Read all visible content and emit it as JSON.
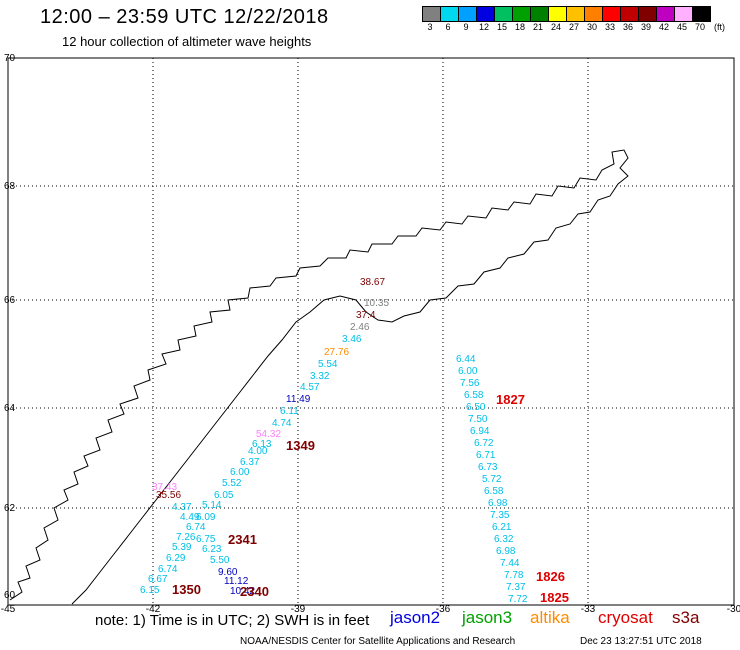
{
  "title": "12:00 – 23:59 UTC 12/22/2018",
  "subtitle": "12 hour collection of altimeter wave heights",
  "colorbar": {
    "colors": [
      "#808080",
      "#00d8f0",
      "#00a0ff",
      "#0000e0",
      "#00c060",
      "#00a000",
      "#008000",
      "#ffff00",
      "#ffc000",
      "#ff8000",
      "#ff0000",
      "#c00000",
      "#800000",
      "#c000c0",
      "#ffb0ff",
      "#000000"
    ],
    "ticks": [
      "3",
      "6",
      "9",
      "12",
      "15",
      "18",
      "21",
      "24",
      "27",
      "30",
      "33",
      "36",
      "39",
      "42",
      "45",
      "70"
    ],
    "unit": "(ft)"
  },
  "axes": {
    "lat_labels": [
      "70",
      "68",
      "66",
      "64",
      "62",
      "60"
    ],
    "lon_labels": [
      "-45",
      "-42",
      "-39",
      "-36",
      "-33",
      "-30"
    ]
  },
  "tracks": [
    {
      "id": "1827-1825",
      "labels": [
        {
          "text": "6.44",
          "color": "#00c0e8"
        },
        {
          "text": "6.00",
          "color": "#00c0e8"
        },
        {
          "text": "7.56",
          "color": "#00c0e8"
        },
        {
          "text": "6.58",
          "color": "#00c0e8"
        },
        {
          "text": "6.50",
          "color": "#00c0e8"
        },
        {
          "text": "7.50",
          "color": "#00c0e8"
        },
        {
          "text": "6.94",
          "color": "#00c0e8"
        },
        {
          "text": "6.72",
          "color": "#00c0e8"
        },
        {
          "text": "6.71",
          "color": "#00c0e8"
        },
        {
          "text": "6.73",
          "color": "#00c0e8"
        },
        {
          "text": "5.72",
          "color": "#00c0e8"
        },
        {
          "text": "6.58",
          "color": "#00c0e8"
        },
        {
          "text": "6.98",
          "color": "#00c0e8"
        },
        {
          "text": "7.35",
          "color": "#00c0e8"
        },
        {
          "text": "6.21",
          "color": "#00c0e8"
        },
        {
          "text": "6.32",
          "color": "#00c0e8"
        },
        {
          "text": "6.98",
          "color": "#00c0e8"
        },
        {
          "text": "7.44",
          "color": "#00c0e8"
        },
        {
          "text": "7.78",
          "color": "#00c0e8"
        },
        {
          "text": "7.37",
          "color": "#00c0e8"
        },
        {
          "text": "7.72",
          "color": "#00c0e8"
        }
      ]
    }
  ],
  "coast_labels": [
    {
      "text": "38.67",
      "color": "#800000"
    },
    {
      "text": "10.35",
      "color": "#808080"
    },
    {
      "text": "37.4",
      "color": "#800000"
    },
    {
      "text": "2.46",
      "color": "#808080"
    },
    {
      "text": "3.46",
      "color": "#00c0e8"
    },
    {
      "text": "27.76",
      "color": "#ff8c00"
    },
    {
      "text": "5.54",
      "color": "#00c0e8"
    },
    {
      "text": "3.32",
      "color": "#00c0e8"
    },
    {
      "text": "4.57",
      "color": "#00c0e8"
    },
    {
      "text": "11.49",
      "color": "#0000c0"
    },
    {
      "text": "6.11",
      "color": "#00c0e8"
    },
    {
      "text": "4.74",
      "color": "#00c0e8"
    },
    {
      "text": "54.32",
      "color": "#ff80ff"
    },
    {
      "text": "6.13",
      "color": "#00c0e8"
    },
    {
      "text": "4.00",
      "color": "#00c0e8"
    },
    {
      "text": "6.37",
      "color": "#00c0e8"
    },
    {
      "text": "6.00",
      "color": "#00c0e8"
    },
    {
      "text": "5.52",
      "color": "#00c0e8"
    },
    {
      "text": "6.05",
      "color": "#00c0e8"
    },
    {
      "text": "37.43",
      "color": "#ff80ff"
    },
    {
      "text": "35.56",
      "color": "#800000"
    },
    {
      "text": "4.37",
      "color": "#00c0e8"
    },
    {
      "text": "5.14",
      "color": "#00c0e8"
    },
    {
      "text": "4.49",
      "color": "#00c0e8"
    },
    {
      "text": "6.09",
      "color": "#00c0e8"
    },
    {
      "text": "6.74",
      "color": "#00c0e8"
    },
    {
      "text": "7.26",
      "color": "#00c0e8"
    },
    {
      "text": "6.75",
      "color": "#00c0e8"
    },
    {
      "text": "5.39",
      "color": "#00c0e8"
    },
    {
      "text": "6.23",
      "color": "#00c0e8"
    },
    {
      "text": "6.29",
      "color": "#00c0e8"
    },
    {
      "text": "5.50",
      "color": "#00c0e8"
    },
    {
      "text": "6.74",
      "color": "#00c0e8"
    },
    {
      "text": "9.60",
      "color": "#0000c0"
    },
    {
      "text": "6.67",
      "color": "#00c0e8"
    },
    {
      "text": "11.12",
      "color": "#0000c0"
    },
    {
      "text": "6.15",
      "color": "#00c0e8"
    },
    {
      "text": "10.42",
      "color": "#0000c0"
    }
  ],
  "time_labels": [
    {
      "text": "1827",
      "color": "#e00000"
    },
    {
      "text": "1826",
      "color": "#e00000"
    },
    {
      "text": "1825",
      "color": "#e00000"
    },
    {
      "text": "1349",
      "color": "#800000"
    },
    {
      "text": "2341",
      "color": "#800000"
    },
    {
      "text": "1350",
      "color": "#800000"
    },
    {
      "text": "2340",
      "color": "#800000"
    }
  ],
  "note": "note: 1) Time is in UTC; 2) SWH is in feet",
  "legend": [
    {
      "text": "jason2",
      "color": "#0000e0"
    },
    {
      "text": "jason3",
      "color": "#00a000"
    },
    {
      "text": "altika",
      "color": "#ff8c00"
    },
    {
      "text": "cryosat",
      "color": "#e00000"
    },
    {
      "text": "s3a",
      "color": "#800000"
    }
  ],
  "footer": "NOAA/NESDIS Center for Satellite Applications and Research",
  "footer_time": "Dec 23 13:27:51 UTC 2018"
}
